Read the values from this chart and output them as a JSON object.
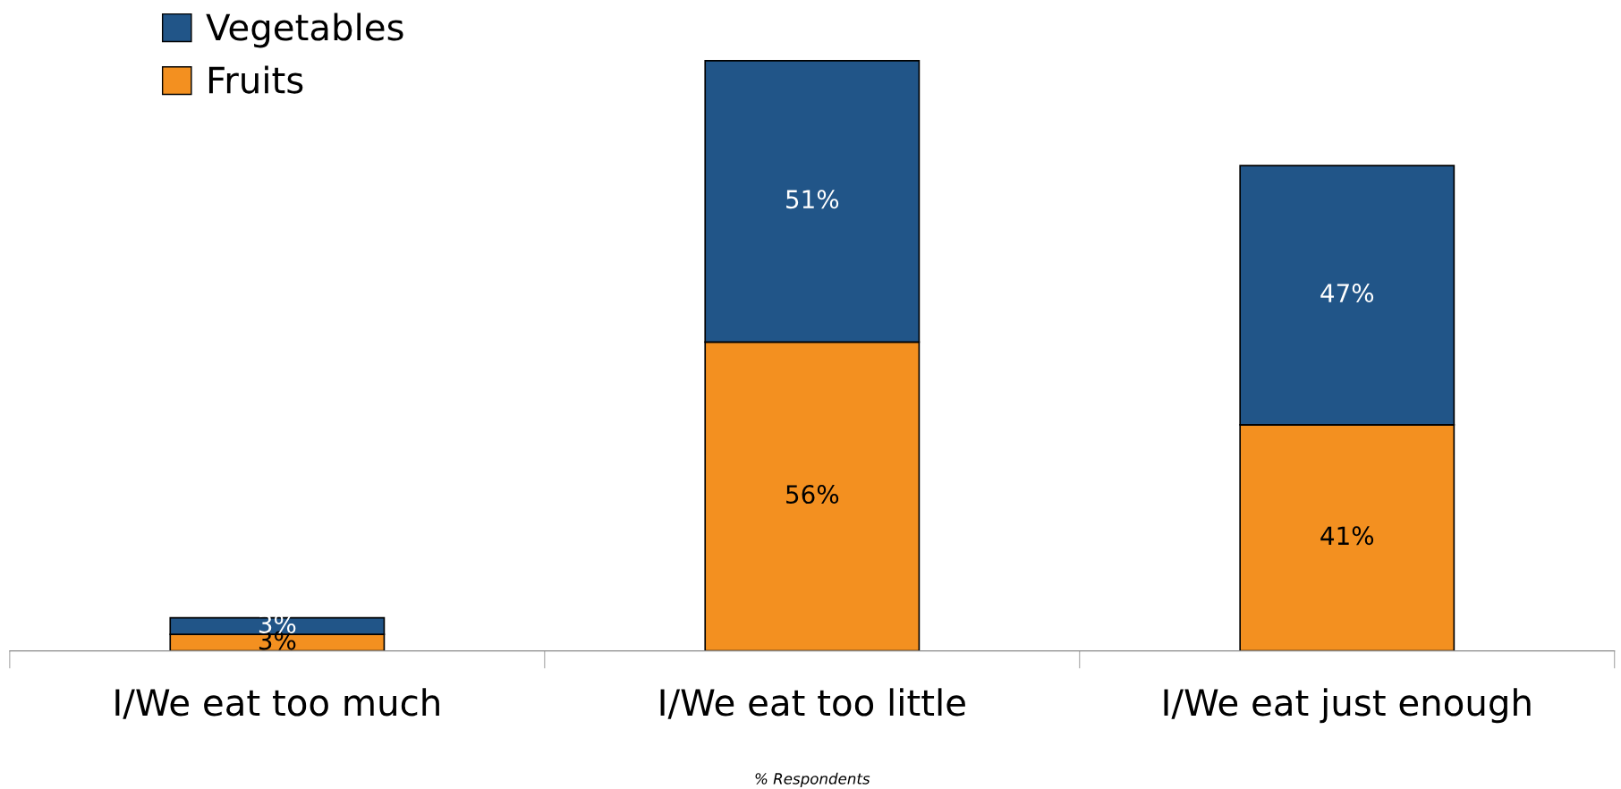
{
  "chart_data": {
    "type": "bar",
    "stacked": true,
    "xlabel": "% Respondents",
    "categories": [
      "I/We eat too much",
      "I/We eat too little",
      "I/We eat just enough"
    ],
    "series": [
      {
        "name": "Fruits",
        "color": "#f39020",
        "values": [
          3,
          56,
          41
        ],
        "value_labels": [
          "3%",
          "56%",
          "41%"
        ]
      },
      {
        "name": "Vegetables",
        "color": "#215588",
        "values": [
          3,
          51,
          47
        ],
        "value_labels": [
          "3%",
          "51%",
          "47%"
        ]
      }
    ],
    "legend": "top left"
  }
}
